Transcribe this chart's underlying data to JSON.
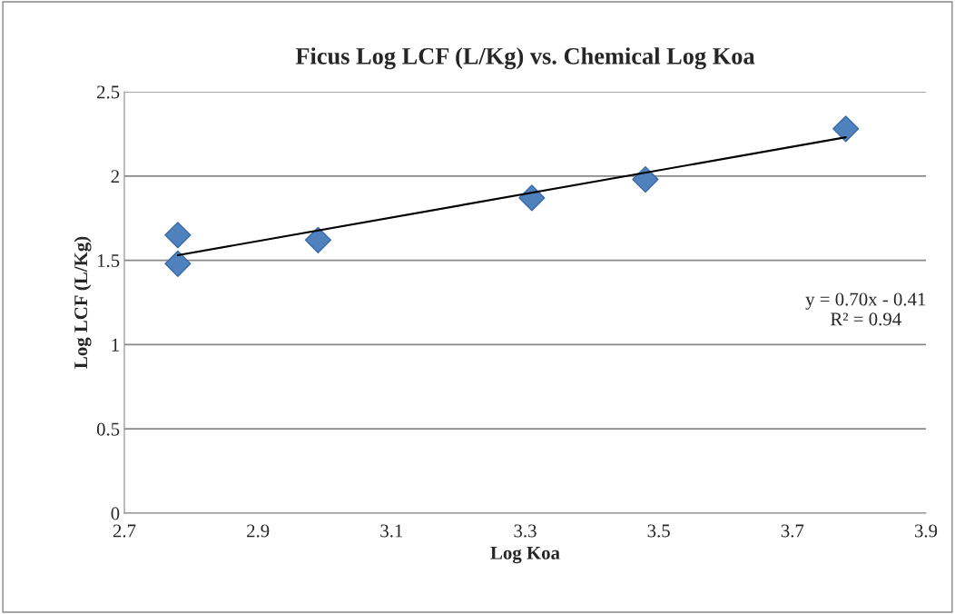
{
  "chart_data": {
    "type": "scatter",
    "title": "Ficus Log LCF (L/Kg) vs. Chemical Log Koa",
    "xlabel": "Log Koa",
    "ylabel": "Log LCF (L/Kg)",
    "series": [
      {
        "color": "#4f81bd",
        "marker": "diamond",
        "x": [
          2.78,
          2.78,
          2.99,
          3.31,
          3.48,
          3.78
        ],
        "values": [
          1.65,
          1.48,
          1.62,
          1.87,
          1.98,
          2.28
        ]
      },
      {
        "type": "line",
        "color": "#000000",
        "marker": "none",
        "x": [
          2.78,
          3.78
        ],
        "values": [
          1.53,
          2.23
        ]
      }
    ],
    "annotations": [
      "y = 0.70x - 0.41\nR² = 0.94"
    ],
    "xlim": [
      2.7,
      3.9
    ],
    "xticks": [
      2.7,
      2.9,
      3.1,
      3.3,
      3.5,
      3.7,
      3.9
    ],
    "ylim": [
      0,
      2.5
    ],
    "yticks": [
      0,
      0.5,
      1,
      1.5,
      2,
      2.5
    ],
    "grid": "y",
    "legend": false
  }
}
